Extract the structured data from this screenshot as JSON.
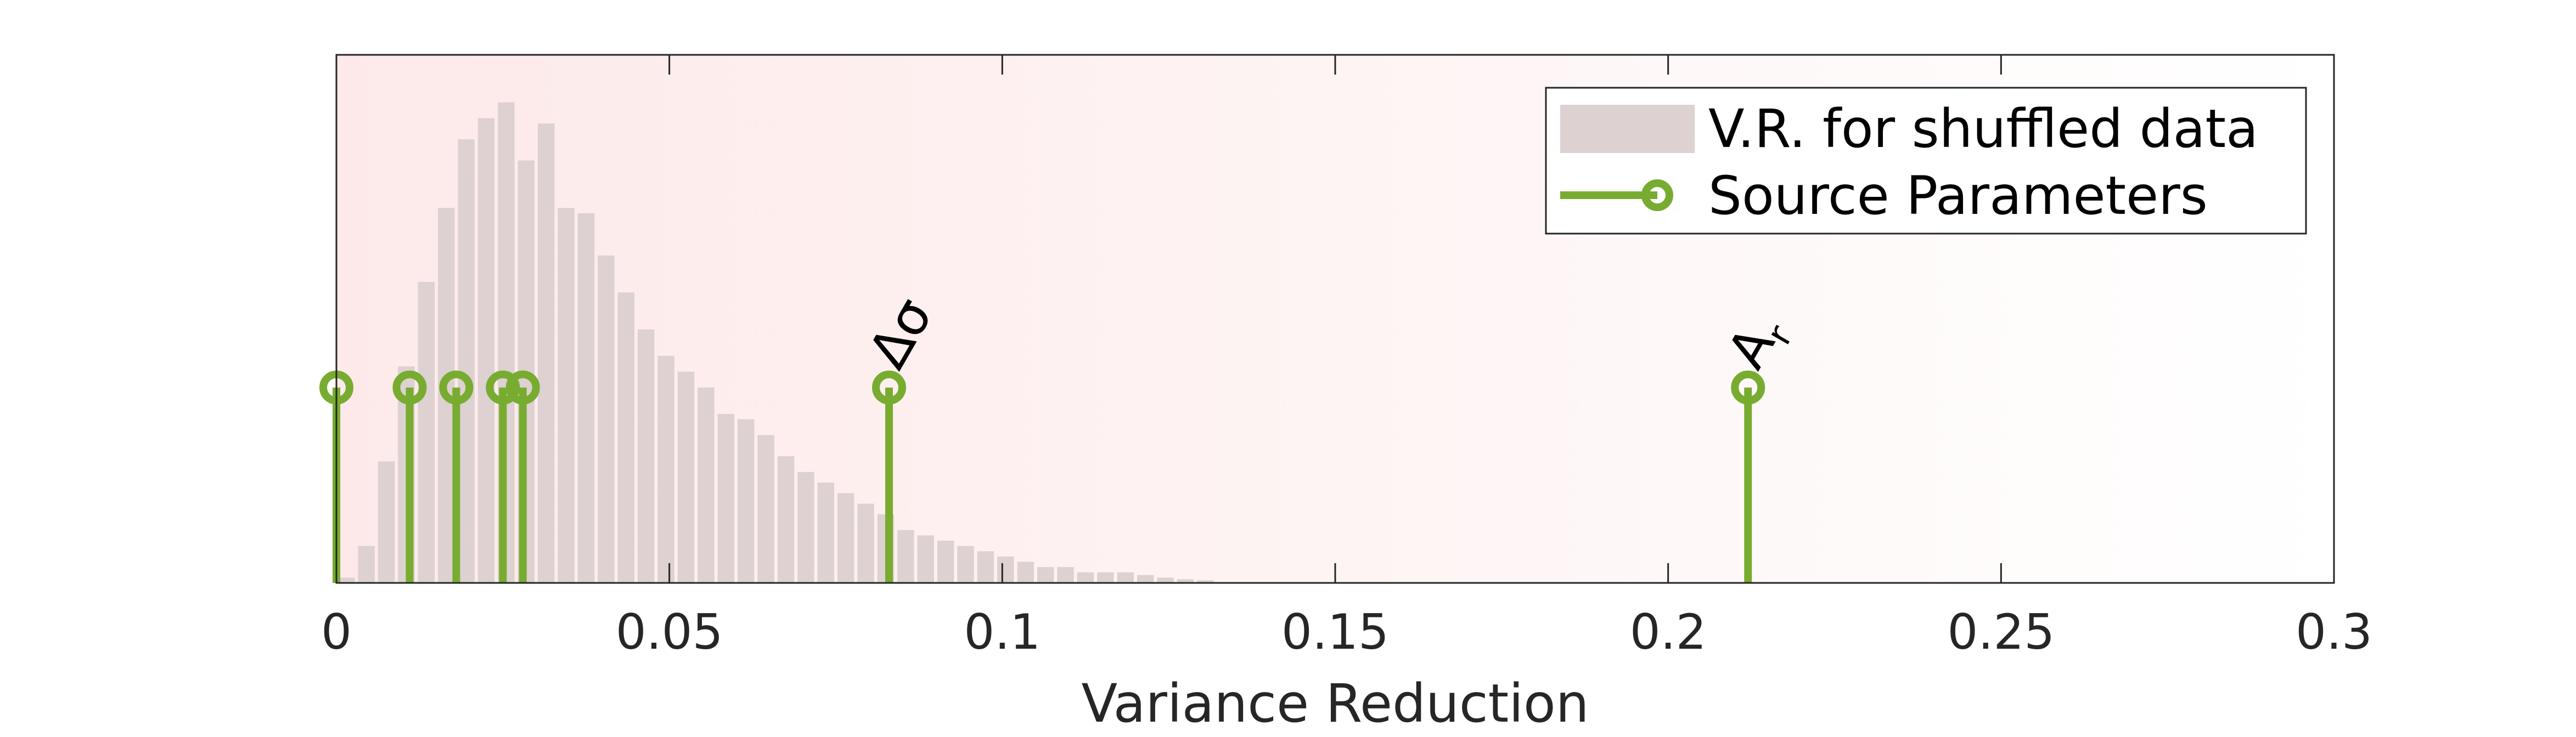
{
  "chart_data": {
    "type": "bar",
    "xlabel": "Variance Reduction",
    "xlim": [
      0,
      0.3
    ],
    "ylim": [
      0,
      1.0
    ],
    "x_ticks": [
      "0",
      "0.05",
      "0.1",
      "0.15",
      "0.2",
      "0.25",
      "0.3"
    ],
    "x_tick_values": [
      0,
      0.05,
      0.1,
      0.15,
      0.2,
      0.25,
      0.3
    ],
    "grid": false,
    "legend_position": "top-right",
    "histogram": {
      "name": "V.R. for shuffled data",
      "color": "#ddd1d1",
      "bin_width": 0.003,
      "bin_starts": [
        0.0,
        0.003,
        0.006,
        0.009,
        0.012,
        0.015,
        0.018,
        0.021,
        0.024,
        0.027,
        0.03,
        0.033,
        0.036,
        0.039,
        0.042,
        0.045,
        0.048,
        0.051,
        0.054,
        0.057,
        0.06,
        0.063,
        0.066,
        0.069,
        0.072,
        0.075,
        0.078,
        0.081,
        0.084,
        0.087,
        0.09,
        0.093,
        0.096,
        0.099,
        0.102,
        0.105,
        0.108,
        0.111,
        0.114,
        0.117,
        0.12,
        0.123,
        0.126,
        0.129
      ],
      "values": [
        0.01,
        0.07,
        0.23,
        0.41,
        0.57,
        0.71,
        0.84,
        0.88,
        0.91,
        0.8,
        0.87,
        0.71,
        0.7,
        0.62,
        0.55,
        0.48,
        0.43,
        0.4,
        0.37,
        0.32,
        0.31,
        0.28,
        0.24,
        0.21,
        0.19,
        0.17,
        0.15,
        0.13,
        0.1,
        0.09,
        0.08,
        0.07,
        0.06,
        0.05,
        0.04,
        0.03,
        0.03,
        0.02,
        0.02,
        0.02,
        0.015,
        0.01,
        0.007,
        0.005
      ]
    },
    "stems": {
      "name": "Source Parameters",
      "color": "#77ac30",
      "x": [
        0.0,
        0.011,
        0.018,
        0.025,
        0.028,
        0.083,
        0.212
      ],
      "height": 0.37
    },
    "annotations": [
      {
        "text": "Δσ",
        "x": 0.083
      },
      {
        "text": "A",
        "sub": "r",
        "x": 0.212
      }
    ],
    "background_gradient": {
      "from": "#fde9e9",
      "to": "#ffffff"
    }
  }
}
